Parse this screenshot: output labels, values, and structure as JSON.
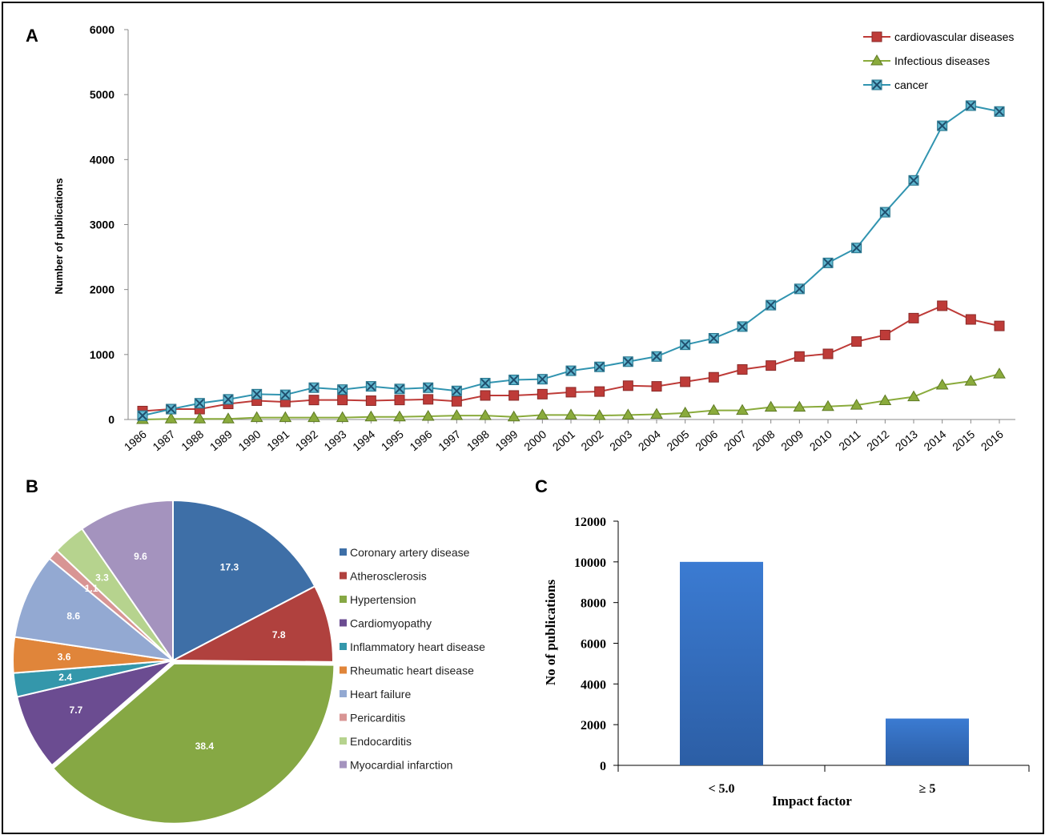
{
  "panels": {
    "a_label": "A",
    "b_label": "B",
    "c_label": "C"
  },
  "chart_data": [
    {
      "type": "line",
      "title": "",
      "ylabel": "Number of publications",
      "xlabel": "",
      "ylim": [
        0,
        6000
      ],
      "yticks": [
        0,
        1000,
        2000,
        3000,
        4000,
        5000,
        6000
      ],
      "grid": false,
      "legend": "top-right",
      "x": [
        1986,
        1987,
        1988,
        1989,
        1990,
        1991,
        1992,
        1993,
        1994,
        1995,
        1996,
        1997,
        1998,
        1999,
        2000,
        2001,
        2002,
        2003,
        2004,
        2005,
        2006,
        2007,
        2008,
        2009,
        2010,
        2011,
        2012,
        2013,
        2014,
        2015,
        2016
      ],
      "series": [
        {
          "name": "cardiovascular diseases",
          "color": "#be3b38",
          "marker": "square",
          "values": [
            130,
            160,
            160,
            240,
            290,
            270,
            300,
            300,
            290,
            300,
            310,
            280,
            370,
            370,
            390,
            420,
            430,
            520,
            510,
            580,
            650,
            770,
            830,
            970,
            1010,
            1200,
            1300,
            1560,
            1750,
            1540,
            1440
          ]
        },
        {
          "name": "Infectious diseases",
          "color": "#8aab3c",
          "marker": "triangle",
          "values": [
            0,
            10,
            10,
            10,
            30,
            30,
            30,
            30,
            40,
            40,
            50,
            60,
            60,
            40,
            70,
            70,
            60,
            70,
            80,
            100,
            140,
            140,
            190,
            190,
            200,
            220,
            290,
            350,
            530,
            590,
            700
          ]
        },
        {
          "name": "cancer",
          "color": "#3194b0",
          "marker": "x",
          "values": [
            60,
            160,
            250,
            310,
            390,
            380,
            490,
            460,
            510,
            470,
            490,
            440,
            560,
            610,
            620,
            750,
            810,
            890,
            970,
            1150,
            1250,
            1430,
            1760,
            2010,
            2410,
            2640,
            3190,
            3680,
            4520,
            4830,
            4740
          ]
        }
      ]
    },
    {
      "type": "pie",
      "title": "",
      "legend": "right",
      "slices": [
        {
          "label": "Coronary artery disease",
          "value": 17.3,
          "color": "#3e6fa7"
        },
        {
          "label": "Atherosclerosis",
          "value": 7.8,
          "color": "#b0413e"
        },
        {
          "label": "Hypertension",
          "value": 38.4,
          "color": "#86a844"
        },
        {
          "label": "Cardiomyopathy",
          "value": 7.7,
          "color": "#6b4c91"
        },
        {
          "label": "Inflammatory heart disease",
          "value": 2.4,
          "color": "#3497ab"
        },
        {
          "label": "Rheumatic heart disease",
          "value": 3.6,
          "color": "#e0853a"
        },
        {
          "label": "Heart  failure",
          "value": 8.6,
          "color": "#93a9d2"
        },
        {
          "label": "Pericarditis",
          "value": 1.1,
          "color": "#d89594"
        },
        {
          "label": "Endocarditis",
          "value": 3.3,
          "color": "#b6d38e"
        },
        {
          "label": "Myocardial infarction",
          "value": 9.6,
          "color": "#a493be"
        }
      ]
    },
    {
      "type": "bar",
      "title": "",
      "xlabel": "Impact factor",
      "ylabel": "No of publications",
      "ylim": [
        0,
        12000
      ],
      "yticks": [
        0,
        2000,
        4000,
        6000,
        8000,
        10000,
        12000
      ],
      "categories": [
        "< 5.0",
        "≥ 5"
      ],
      "values": [
        10000,
        2300
      ],
      "color": "#3a74c4",
      "grid": false
    }
  ]
}
